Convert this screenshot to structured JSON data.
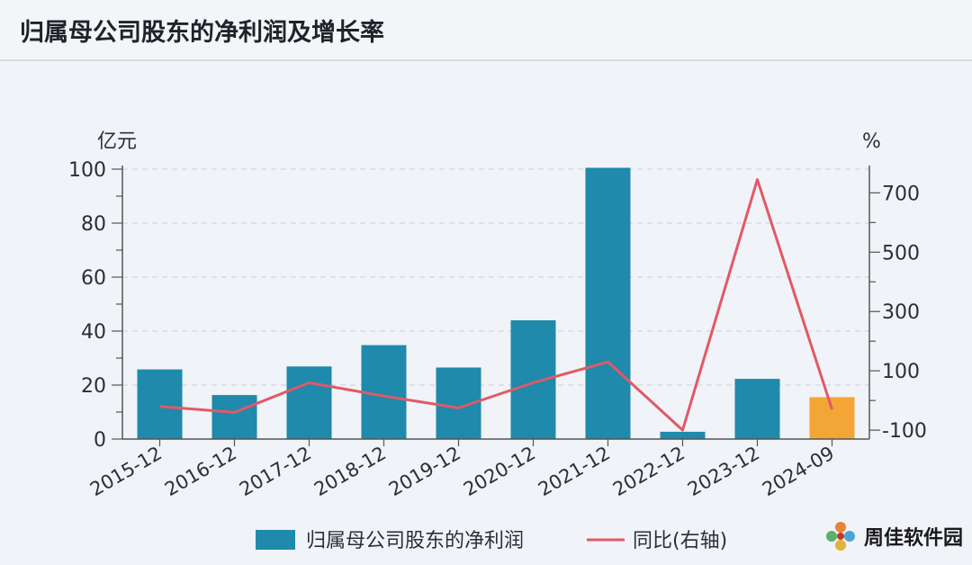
{
  "header": {
    "title": "归属母公司股东的净利润及增长率"
  },
  "chart_data": {
    "type": "bar",
    "categories": [
      "2015-12",
      "2016-12",
      "2017-12",
      "2018-12",
      "2019-12",
      "2020-12",
      "2021-12",
      "2022-12",
      "2023-12",
      "2024-09"
    ],
    "series": [
      {
        "name": "归属母公司股东的净利润",
        "type": "bar",
        "axis": "left",
        "values": [
          25.8,
          16.3,
          26.9,
          34.8,
          26.5,
          44.0,
          100.5,
          2.7,
          22.3,
          15.5
        ],
        "color": "#1f8aab",
        "highlight_color": "#f3a536",
        "highlight_index": 9
      },
      {
        "name": "同比(右轴)",
        "type": "line",
        "axis": "right",
        "values": [
          -20,
          -40,
          60,
          15,
          -25,
          60,
          130,
          -100,
          745,
          -30
        ],
        "color": "#e05a66"
      }
    ],
    "left_axis": {
      "label": "亿元",
      "ylim": [
        0,
        100
      ],
      "ticks": [
        0,
        20,
        40,
        60,
        80,
        100
      ]
    },
    "right_axis": {
      "label": "%",
      "ylim": [
        -130,
        780
      ],
      "ticks": [
        -100,
        100,
        300,
        500,
        700
      ]
    },
    "grid": true,
    "legend": {
      "position": "bottom-center",
      "items": [
        "归属母公司股东的净利润",
        "同比(右轴)"
      ]
    }
  },
  "watermark": {
    "text": "周佳软件园",
    "icon": "flower-logo-icon"
  }
}
